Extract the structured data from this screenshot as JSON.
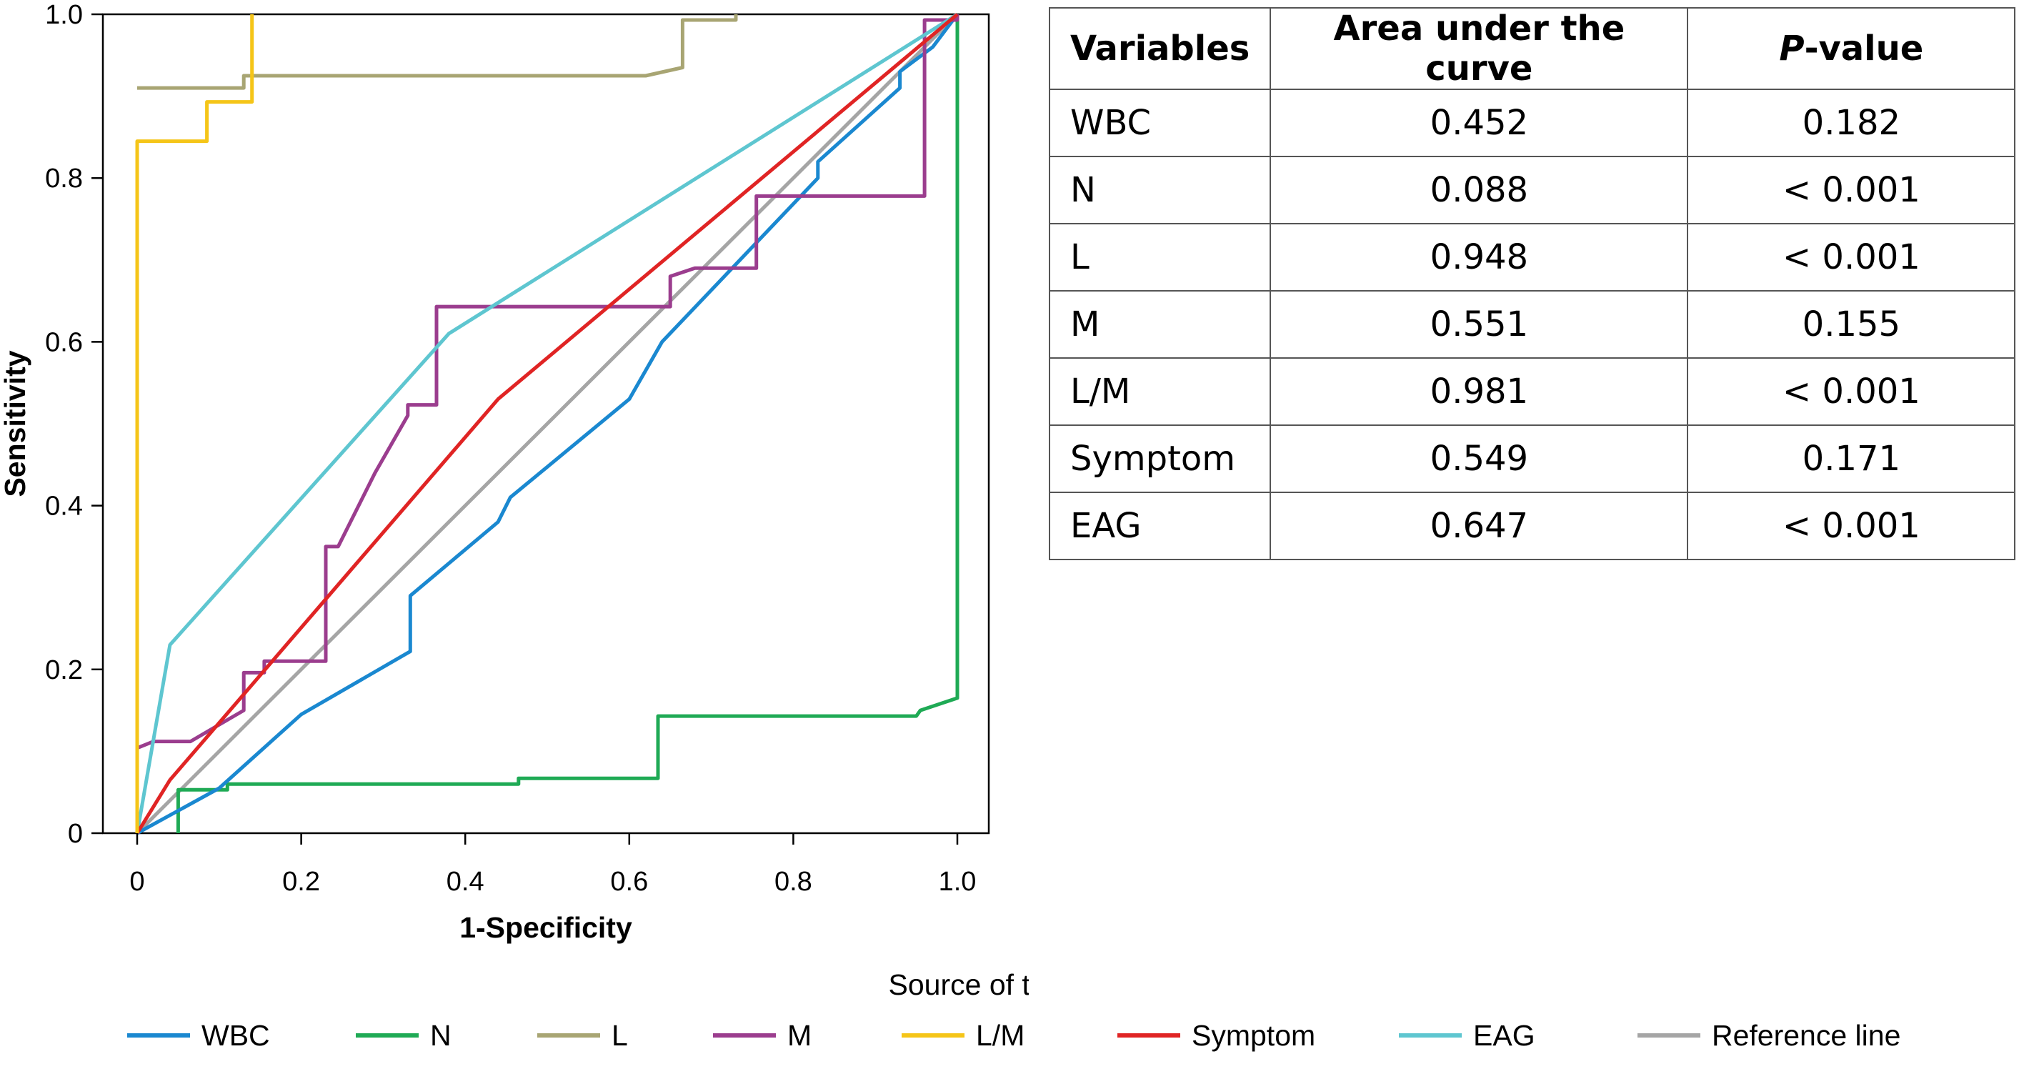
{
  "chart_data": {
    "type": "line",
    "xlabel": "1-Specificity",
    "ylabel": "Sensitivity",
    "xlim": [
      0,
      1
    ],
    "ylim": [
      0,
      1
    ],
    "x_ticks": [
      "0",
      "0.2",
      "0.4",
      "0.6",
      "0.8",
      "1.0"
    ],
    "y_ticks": [
      "0",
      "0.2",
      "0.4",
      "0.6",
      "0.8",
      "1.0"
    ],
    "grid": false,
    "legend_title": "Source of the curve:",
    "legend_position": "bottom",
    "series": [
      {
        "name": "WBC",
        "color": "#1a88d0",
        "points": [
          [
            0,
            0
          ],
          [
            0.1,
            0.055
          ],
          [
            0.2,
            0.145
          ],
          [
            0.333,
            0.222
          ],
          [
            0.333,
            0.29
          ],
          [
            0.44,
            0.38
          ],
          [
            0.455,
            0.41
          ],
          [
            0.6,
            0.53
          ],
          [
            0.64,
            0.6
          ],
          [
            0.83,
            0.8
          ],
          [
            0.83,
            0.82
          ],
          [
            0.93,
            0.91
          ],
          [
            0.93,
            0.93
          ],
          [
            0.97,
            0.96
          ],
          [
            1,
            1
          ]
        ]
      },
      {
        "name": "N",
        "color": "#1faa55",
        "points": [
          [
            0.05,
            0
          ],
          [
            0.05,
            0.053
          ],
          [
            0.11,
            0.053
          ],
          [
            0.11,
            0.06
          ],
          [
            0.465,
            0.06
          ],
          [
            0.465,
            0.067
          ],
          [
            0.635,
            0.067
          ],
          [
            0.635,
            0.143
          ],
          [
            0.95,
            0.143
          ],
          [
            0.955,
            0.15
          ],
          [
            1,
            0.165
          ],
          [
            1,
            1
          ]
        ]
      },
      {
        "name": "L",
        "color": "#a8a573",
        "points": [
          [
            0,
            0.91
          ],
          [
            0.13,
            0.91
          ],
          [
            0.13,
            0.925
          ],
          [
            0.62,
            0.925
          ],
          [
            0.665,
            0.935
          ],
          [
            0.665,
            0.993
          ],
          [
            0.73,
            0.993
          ],
          [
            0.73,
            1
          ]
        ]
      },
      {
        "name": "M",
        "color": "#9b3d8e",
        "points": [
          [
            0,
            0
          ],
          [
            0,
            0.104
          ],
          [
            0.02,
            0.112
          ],
          [
            0.065,
            0.112
          ],
          [
            0.13,
            0.15
          ],
          [
            0.13,
            0.196
          ],
          [
            0.155,
            0.196
          ],
          [
            0.155,
            0.21
          ],
          [
            0.23,
            0.21
          ],
          [
            0.23,
            0.35
          ],
          [
            0.245,
            0.35
          ],
          [
            0.29,
            0.44
          ],
          [
            0.33,
            0.51
          ],
          [
            0.33,
            0.523
          ],
          [
            0.365,
            0.523
          ],
          [
            0.365,
            0.643
          ],
          [
            0.65,
            0.643
          ],
          [
            0.65,
            0.68
          ],
          [
            0.68,
            0.69
          ],
          [
            0.755,
            0.69
          ],
          [
            0.755,
            0.778
          ],
          [
            0.96,
            0.778
          ],
          [
            0.96,
            0.993
          ],
          [
            1,
            0.993
          ],
          [
            1,
            1
          ]
        ]
      },
      {
        "name": "L/M",
        "color": "#f5c518",
        "points": [
          [
            0,
            0
          ],
          [
            0,
            0.845
          ],
          [
            0.085,
            0.845
          ],
          [
            0.085,
            0.893
          ],
          [
            0.14,
            0.893
          ],
          [
            0.14,
            1
          ]
        ]
      },
      {
        "name": "Symptom",
        "color": "#e02424",
        "points": [
          [
            0,
            0
          ],
          [
            0.04,
            0.065
          ],
          [
            0.44,
            0.53
          ],
          [
            1,
            1
          ]
        ]
      },
      {
        "name": "EAG",
        "color": "#5ec6d0",
        "points": [
          [
            0,
            0
          ],
          [
            0.04,
            0.23
          ],
          [
            0.38,
            0.61
          ],
          [
            1,
            1
          ]
        ]
      },
      {
        "name": "Reference line",
        "color": "#a5a5a5",
        "points": [
          [
            0,
            0
          ],
          [
            1,
            1
          ]
        ]
      }
    ]
  },
  "table": {
    "headers": [
      "Variables",
      "Area under the curve",
      "P",
      "-value"
    ],
    "rows": [
      [
        "WBC",
        "0.452",
        "0.182"
      ],
      [
        "N",
        "0.088",
        "< 0.001"
      ],
      [
        "L",
        "0.948",
        "< 0.001"
      ],
      [
        "M",
        "0.551",
        "0.155"
      ],
      [
        "L/M",
        "0.981",
        "< 0.001"
      ],
      [
        "Symptom",
        "0.549",
        "0.171"
      ],
      [
        "EAG",
        "0.647",
        "< 0.001"
      ]
    ]
  }
}
